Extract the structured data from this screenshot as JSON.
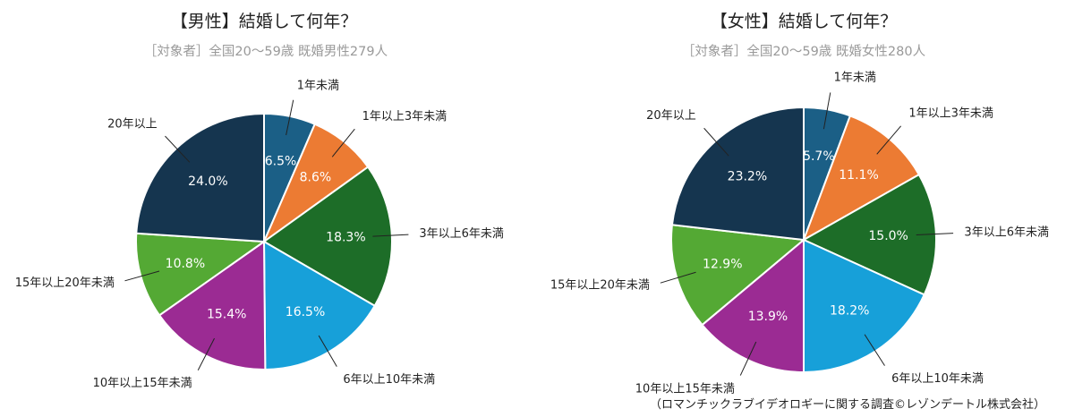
{
  "chart_data": [
    {
      "type": "pie",
      "title": "【男性】結婚して何年？",
      "subtitle": "［対象者］全国20〜59歳 既婚男性279人",
      "categories": [
        "1年未満",
        "1年以上3年未満",
        "3年以上6年未満",
        "6年以上10年未満",
        "10年以上15年未満",
        "15年以上20年未満",
        "20年以上"
      ],
      "values": [
        6.5,
        8.6,
        18.3,
        16.5,
        15.4,
        10.8,
        24.0
      ],
      "labels": [
        "6.5%",
        "8.6%",
        "18.3%",
        "16.5%",
        "15.4%",
        "10.8%",
        "24.0%"
      ],
      "colors": [
        "#1b5f86",
        "#ec7b33",
        "#1d6d28",
        "#17a0d9",
        "#9b2b93",
        "#54a934",
        "#15354f"
      ]
    },
    {
      "type": "pie",
      "title": "【女性】結婚して何年？",
      "subtitle": "［対象者］全国20〜59歳 既婚女性280人",
      "categories": [
        "1年未満",
        "1年以上3年未満",
        "3年以上6年未満",
        "6年以上10年未満",
        "10年以上15年未満",
        "15年以上20年未満",
        "20年以上"
      ],
      "values": [
        5.7,
        11.1,
        15.0,
        18.2,
        13.9,
        12.9,
        23.2
      ],
      "labels": [
        "5.7%",
        "11.1%",
        "15.0%",
        "18.2%",
        "13.9%",
        "12.9%",
        "23.2%"
      ],
      "colors": [
        "#1b5f86",
        "#ec7b33",
        "#1d6d28",
        "#17a0d9",
        "#9b2b93",
        "#54a934",
        "#15354f"
      ]
    }
  ],
  "source": "（ロマンチックラブイデオロギーに関する調査©レゾンデートル株式会社）"
}
